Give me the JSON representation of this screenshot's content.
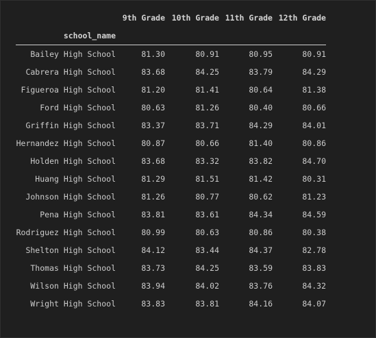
{
  "table": {
    "index_name": "school_name",
    "columns": [
      "9th Grade",
      "10th Grade",
      "11th Grade",
      "12th Grade"
    ],
    "rows": [
      {
        "school": "Bailey High School",
        "values": [
          "81.30",
          "80.91",
          "80.95",
          "80.91"
        ]
      },
      {
        "school": "Cabrera High School",
        "values": [
          "83.68",
          "84.25",
          "83.79",
          "84.29"
        ]
      },
      {
        "school": "Figueroa High School",
        "values": [
          "81.20",
          "81.41",
          "80.64",
          "81.38"
        ]
      },
      {
        "school": "Ford High School",
        "values": [
          "80.63",
          "81.26",
          "80.40",
          "80.66"
        ]
      },
      {
        "school": "Griffin High School",
        "values": [
          "83.37",
          "83.71",
          "84.29",
          "84.01"
        ]
      },
      {
        "school": "Hernandez High School",
        "values": [
          "80.87",
          "80.66",
          "81.40",
          "80.86"
        ]
      },
      {
        "school": "Holden High School",
        "values": [
          "83.68",
          "83.32",
          "83.82",
          "84.70"
        ]
      },
      {
        "school": "Huang High School",
        "values": [
          "81.29",
          "81.51",
          "81.42",
          "80.31"
        ]
      },
      {
        "school": "Johnson High School",
        "values": [
          "81.26",
          "80.77",
          "80.62",
          "81.23"
        ]
      },
      {
        "school": "Pena High School",
        "values": [
          "83.81",
          "83.61",
          "84.34",
          "84.59"
        ]
      },
      {
        "school": "Rodriguez High School",
        "values": [
          "80.99",
          "80.63",
          "80.86",
          "80.38"
        ]
      },
      {
        "school": "Shelton High School",
        "values": [
          "84.12",
          "83.44",
          "84.37",
          "82.78"
        ]
      },
      {
        "school": "Thomas High School",
        "values": [
          "83.73",
          "84.25",
          "83.59",
          "83.83"
        ]
      },
      {
        "school": "Wilson High School",
        "values": [
          "83.94",
          "84.02",
          "83.76",
          "84.32"
        ]
      },
      {
        "school": "Wright High School",
        "values": [
          "83.83",
          "83.81",
          "84.16",
          "84.07"
        ]
      }
    ]
  }
}
